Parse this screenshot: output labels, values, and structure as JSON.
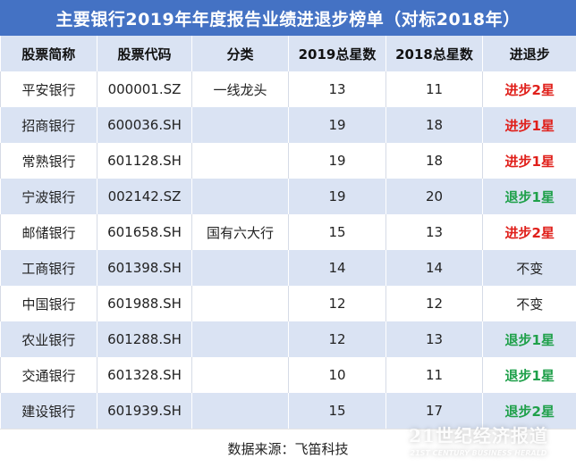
{
  "title": "主要银行2019年年度报告业绩进退步榜单（对标2018年）",
  "headers": [
    "股票简称",
    "股票代码",
    "分类",
    "2019总星数",
    "2018总星数",
    "进退步"
  ],
  "rows": [
    {
      "name": "平安银行",
      "code": "000001.SZ",
      "category": "一线龙头",
      "stars2019": "13",
      "stars2018": "11",
      "change": "进步2星",
      "trend": "up"
    },
    {
      "name": "招商银行",
      "code": "600036.SH",
      "category": "",
      "stars2019": "19",
      "stars2018": "18",
      "change": "进步1星",
      "trend": "up"
    },
    {
      "name": "常熟银行",
      "code": "601128.SH",
      "category": "",
      "stars2019": "19",
      "stars2018": "18",
      "change": "进步1星",
      "trend": "up"
    },
    {
      "name": "宁波银行",
      "code": "002142.SZ",
      "category": "",
      "stars2019": "19",
      "stars2018": "20",
      "change": "退步1星",
      "trend": "down"
    },
    {
      "name": "邮储银行",
      "code": "601658.SH",
      "category": "国有六大行",
      "stars2019": "15",
      "stars2018": "13",
      "change": "进步2星",
      "trend": "up"
    },
    {
      "name": "工商银行",
      "code": "601398.SH",
      "category": "",
      "stars2019": "14",
      "stars2018": "14",
      "change": "不变",
      "trend": "same"
    },
    {
      "name": "中国银行",
      "code": "601988.SH",
      "category": "",
      "stars2019": "12",
      "stars2018": "12",
      "change": "不变",
      "trend": "same"
    },
    {
      "name": "农业银行",
      "code": "601288.SH",
      "category": "",
      "stars2019": "12",
      "stars2018": "13",
      "change": "退步1星",
      "trend": "down"
    },
    {
      "name": "交通银行",
      "code": "601328.SH",
      "category": "",
      "stars2019": "10",
      "stars2018": "11",
      "change": "退步1星",
      "trend": "down"
    },
    {
      "name": "建设银行",
      "code": "601939.SH",
      "category": "",
      "stars2019": "15",
      "stars2018": "17",
      "change": "退步2星",
      "trend": "down"
    }
  ],
  "footer": "数据来源：飞笛科技",
  "watermark": {
    "cn": "21世纪经济报道",
    "en": "21ST CENTURY BUSINESS HERALD"
  },
  "colors": {
    "title_bg": "#4472c4",
    "band": "#dae3f3",
    "up": "#e0201b",
    "down": "#1fa04a"
  }
}
